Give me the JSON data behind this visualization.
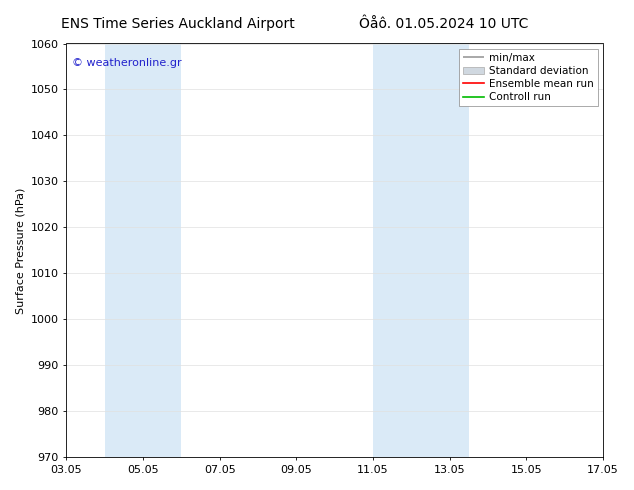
{
  "title_left": "ENS Time Series Auckland Airport",
  "title_right": "Ôåô. 01.05.2024 10 UTC",
  "ylabel": "Surface Pressure (hPa)",
  "ylim": [
    970,
    1060
  ],
  "yticks": [
    970,
    980,
    990,
    1000,
    1010,
    1020,
    1030,
    1040,
    1050,
    1060
  ],
  "xlim": [
    0,
    14
  ],
  "xtick_labels": [
    "03.05",
    "05.05",
    "07.05",
    "09.05",
    "11.05",
    "13.05",
    "15.05",
    "17.05"
  ],
  "xtick_positions": [
    0,
    2,
    4,
    6,
    8,
    10,
    12,
    14
  ],
  "shaded_bands": [
    {
      "x_start": 1,
      "x_end": 3,
      "color": "#daeaf7"
    },
    {
      "x_start": 8,
      "x_end": 10.5,
      "color": "#daeaf7"
    }
  ],
  "watermark": "© weatheronline.gr",
  "watermark_color": "#2222cc",
  "legend_labels": [
    "min/max",
    "Standard deviation",
    "Ensemble mean run",
    "Controll run"
  ],
  "legend_colors_line": [
    "#999999",
    "#bbbbbb",
    "#ff0000",
    "#00bb00"
  ],
  "background_color": "#ffffff",
  "title_fontsize": 10,
  "axis_label_fontsize": 8,
  "tick_fontsize": 8,
  "legend_fontsize": 7.5
}
